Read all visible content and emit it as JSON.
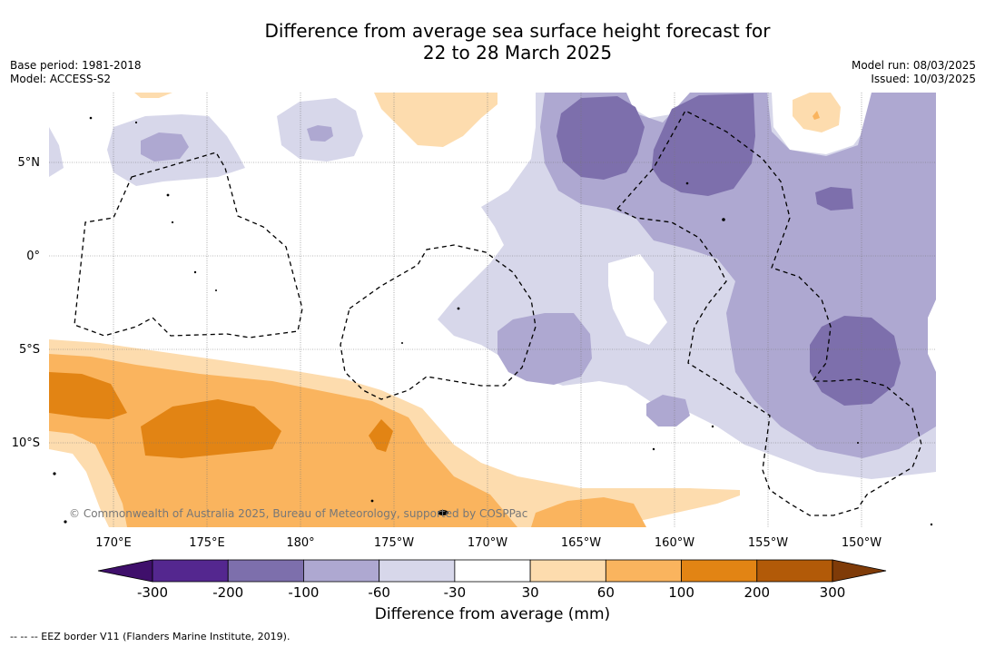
{
  "title": {
    "line1": "Difference from average sea surface height forecast for",
    "line2": "22 to 28 March 2025"
  },
  "meta_left": {
    "base_period": "Base period: 1981-2018",
    "model": "Model: ACCESS-S2"
  },
  "meta_right": {
    "model_run": "Model run: 08/03/2025",
    "issued": "Issued: 10/03/2025"
  },
  "map": {
    "lat_ticks": [
      "5°N",
      "0°",
      "5°S",
      "10°S"
    ],
    "lon_ticks": [
      "170°E",
      "175°E",
      "180°",
      "175°W",
      "170°W",
      "165°W",
      "160°W",
      "155°W",
      "150°W"
    ],
    "copyright": "© Commonwealth of Australia 2025, Bureau of Meteorology, supported by COSPPac"
  },
  "colorbar": {
    "title": "Difference from average (mm)",
    "tick_labels": [
      "-300",
      "-200",
      "-100",
      "-60",
      "-30",
      "30",
      "60",
      "100",
      "200",
      "300"
    ],
    "colors": [
      "#3f0f6b",
      "#54278f",
      "#7d6fac",
      "#aea8d1",
      "#d7d7ea",
      "#ffffff",
      "#fddcae",
      "#fab45e",
      "#e28414",
      "#b25a08",
      "#7f3b08"
    ]
  },
  "footnote": "--  --  -- EEZ border V11 (Flanders Marine Institute, 2019)."
}
